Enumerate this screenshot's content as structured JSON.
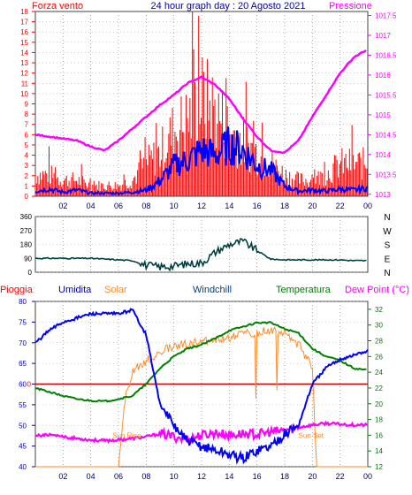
{
  "page": {
    "title": "24 hour graph day : 20 Agosto 2021"
  },
  "chart_data": [
    {
      "type": "line",
      "panel": "wind-pressure",
      "title": "24 hour graph day : 20 Agosto 2021",
      "left_label": "Forza vento",
      "right_label": "Pressione",
      "x_ticks": [
        "02",
        "04",
        "06",
        "08",
        "10",
        "12",
        "14",
        "16",
        "18",
        "20",
        "22",
        "00"
      ],
      "y_left_ticks": [
        0,
        1,
        2,
        3,
        4,
        5,
        6,
        7,
        8,
        9,
        10,
        11,
        12,
        13,
        14,
        15,
        16,
        17,
        18
      ],
      "y_left_lim": [
        0,
        18
      ],
      "y_right_ticks": [
        "1013",
        "1013.5",
        "1014",
        "1014.5",
        "1015",
        "1015.5",
        "1016",
        "1016.5",
        "1017",
        "1017.5"
      ],
      "y_right_lim": [
        1012.95,
        1017.6
      ],
      "grid": true,
      "series": [
        {
          "key": "gust",
          "color": "#ff0000",
          "style": "bars",
          "x": [
            0,
            1,
            2,
            3,
            4,
            5,
            6,
            7,
            8,
            9,
            10,
            11,
            12,
            13,
            14,
            15,
            16,
            17,
            18,
            19,
            20,
            21,
            22,
            23,
            24
          ],
          "values": [
            2,
            2,
            1.5,
            1.5,
            1,
            1,
            1,
            1.5,
            3,
            4,
            6,
            7,
            9,
            8,
            6,
            5,
            4,
            3,
            2,
            1.5,
            1.5,
            2,
            3,
            3,
            3
          ]
        },
        {
          "key": "wind",
          "color": "#0000ff",
          "style": "line",
          "x": [
            0,
            1,
            2,
            3,
            4,
            5,
            6,
            7,
            8,
            9,
            10,
            11,
            12,
            13,
            14,
            15,
            16,
            17,
            18,
            19,
            20,
            21,
            22,
            23,
            24
          ],
          "values": [
            0.5,
            0.7,
            0.4,
            0.6,
            0.3,
            0.3,
            0.3,
            0.4,
            0.6,
            1.5,
            3,
            3.5,
            4.5,
            4,
            5,
            4.5,
            3,
            2.5,
            1,
            0.5,
            0.6,
            0.5,
            0.7,
            0.6,
            0.8
          ]
        },
        {
          "key": "pressure",
          "color": "#ff00ff",
          "axis": "right",
          "style": "line",
          "x": [
            0,
            1,
            2,
            3,
            4,
            5,
            6,
            7,
            8,
            9,
            10,
            11,
            12,
            13,
            14,
            15,
            16,
            17,
            18,
            19,
            20,
            21,
            22,
            23,
            24
          ],
          "values": [
            1014.5,
            1014.45,
            1014.4,
            1014.35,
            1014.2,
            1014.1,
            1014.35,
            1014.65,
            1014.95,
            1015.25,
            1015.5,
            1015.8,
            1015.95,
            1015.75,
            1015.4,
            1014.9,
            1014.45,
            1014.1,
            1014.05,
            1014.35,
            1014.95,
            1015.5,
            1016.05,
            1016.45,
            1016.65
          ]
        }
      ]
    },
    {
      "type": "line",
      "panel": "wind-direction",
      "y_ticks": [
        "360",
        "270",
        "180",
        "90",
        "0"
      ],
      "ylim": [
        0,
        360
      ],
      "right_labels": [
        "N",
        "W",
        "S",
        "E",
        "N"
      ],
      "x_ticks": [],
      "grid": true,
      "series": [
        {
          "key": "direction",
          "color": "#004040",
          "x": [
            0,
            1,
            2,
            3,
            4,
            5,
            6,
            7,
            8,
            9,
            10,
            11,
            12,
            13,
            14,
            15,
            16,
            17,
            18,
            19,
            20,
            21,
            22,
            23,
            24
          ],
          "values": [
            90,
            90,
            90,
            90,
            90,
            85,
            80,
            75,
            45,
            35,
            40,
            55,
            60,
            130,
            180,
            200,
            140,
            85,
            80,
            80,
            80,
            80,
            80,
            75,
            75
          ]
        }
      ]
    },
    {
      "type": "line",
      "panel": "humidity-temperature",
      "labels": {
        "rain": "Pioggia",
        "humidity": "Umidita",
        "solar": "Solar",
        "windchill": "Windchill",
        "temperature": "Temperatura",
        "dewpoint": "Dew Point (°C)"
      },
      "y_left_ticks": [
        40,
        45,
        50,
        55,
        60,
        65,
        70,
        75,
        80
      ],
      "y_left_lim": [
        40,
        80
      ],
      "y_right_ticks": [
        12,
        14,
        16,
        18,
        20,
        22,
        24,
        26,
        28,
        30,
        32
      ],
      "y_right_lim": [
        12,
        33
      ],
      "rain_ticks": [
        "0"
      ],
      "x_ticks": [
        "02",
        "04",
        "06",
        "08",
        "10",
        "12",
        "14",
        "16",
        "18",
        "20",
        "22",
        "00"
      ],
      "grid": true,
      "annotations": [
        "Sun Rise",
        "Sun Set"
      ],
      "series": [
        {
          "key": "humidity",
          "color": "#0000ff",
          "axis": "left",
          "x": [
            0,
            1,
            2,
            3,
            4,
            5,
            6,
            7,
            8,
            9,
            10,
            11,
            12,
            13,
            14,
            15,
            16,
            17,
            18,
            19,
            20,
            21,
            22,
            23,
            24
          ],
          "values": [
            70,
            73,
            75,
            76,
            77,
            77,
            77,
            78,
            72,
            55,
            50,
            46,
            45,
            44,
            43,
            42,
            44,
            45,
            48,
            50,
            60,
            64,
            66,
            67,
            68
          ]
        },
        {
          "key": "temperature",
          "color": "#008000",
          "axis": "right",
          "x": [
            0,
            1,
            2,
            3,
            4,
            5,
            6,
            7,
            8,
            9,
            10,
            11,
            12,
            13,
            14,
            15,
            16,
            17,
            18,
            19,
            20,
            21,
            22,
            23,
            24
          ],
          "values": [
            22,
            21.5,
            21,
            20.6,
            20.4,
            20.3,
            20.6,
            21,
            22.5,
            24.5,
            26,
            27,
            27.5,
            28.3,
            29.3,
            29.8,
            30.3,
            30.3,
            29.5,
            29,
            27,
            26,
            25.5,
            24.5,
            24.3
          ]
        },
        {
          "key": "dewpoint",
          "color": "#ff00ff",
          "axis": "right",
          "x": [
            0,
            1,
            2,
            3,
            4,
            5,
            6,
            7,
            8,
            9,
            10,
            11,
            12,
            13,
            14,
            15,
            16,
            17,
            18,
            19,
            20,
            21,
            22,
            23,
            24
          ],
          "values": [
            16,
            16,
            15.8,
            15.6,
            15.4,
            15.3,
            15.4,
            15.6,
            15.8,
            16.2,
            15.8,
            15.5,
            16,
            16.3,
            16,
            16.2,
            16.1,
            16.4,
            16.6,
            17,
            17.3,
            17.5,
            17.4,
            17.3,
            17.3
          ]
        },
        {
          "key": "solar",
          "color": "#ff8c2a",
          "axis": "right",
          "x": [
            0,
            1,
            2,
            3,
            4,
            5,
            6,
            6.5,
            7,
            8,
            9,
            10,
            11,
            12,
            13,
            14,
            15,
            16,
            17,
            18,
            19,
            20,
            20.3,
            21,
            22,
            23,
            24
          ],
          "values": [
            12,
            12,
            12,
            12,
            12,
            12,
            12,
            21,
            24,
            25.5,
            26.5,
            27.3,
            27.6,
            27.8,
            28,
            28.3,
            28.8,
            29,
            29.3,
            29,
            27.5,
            24.5,
            12,
            12,
            12,
            12,
            12
          ]
        }
      ]
    }
  ]
}
